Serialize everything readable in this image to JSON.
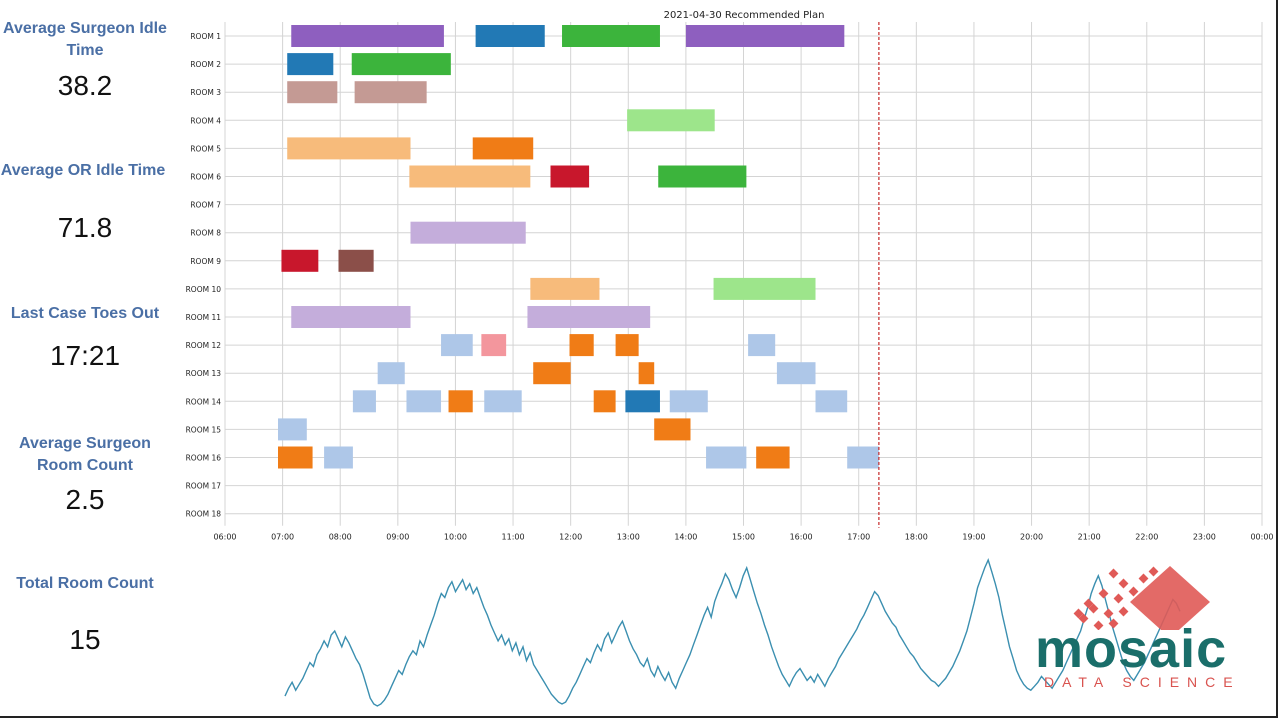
{
  "metrics": [
    {
      "label": "Average Surgeon Idle Time",
      "value": "38.2"
    },
    {
      "label": "Average OR Idle Time",
      "value": "71.8"
    },
    {
      "label": "Last Case Toes Out",
      "value": "17:21"
    },
    {
      "label": "Average Surgeon Room Count",
      "value": "2.5"
    },
    {
      "label": "Total Room Count",
      "value": "15"
    }
  ],
  "logo": {
    "word": "mosaic",
    "sub": "DATA SCIENCE"
  },
  "colors": {
    "accent": "#4a6fa5",
    "cutoff": "#c62828",
    "line": "#3b8fb0"
  },
  "chart_data": [
    {
      "type": "gantt",
      "title": "2021-04-30 Recommended Plan",
      "rooms": [
        "ROOM 1",
        "ROOM 2",
        "ROOM 3",
        "ROOM 4",
        "ROOM 5",
        "ROOM 6",
        "ROOM 7",
        "ROOM 8",
        "ROOM 9",
        "ROOM 10",
        "ROOM 11",
        "ROOM 12",
        "ROOM 13",
        "ROOM 14",
        "ROOM 15",
        "ROOM 16",
        "ROOM 17",
        "ROOM 18"
      ],
      "x_ticks": [
        "06:00",
        "07:00",
        "08:00",
        "09:00",
        "10:00",
        "11:00",
        "12:00",
        "13:00",
        "14:00",
        "15:00",
        "16:00",
        "17:00",
        "18:00",
        "19:00",
        "20:00",
        "21:00",
        "22:00",
        "23:00",
        "00:00"
      ],
      "x_range_hours": [
        6,
        24
      ],
      "cutoff_hour": 17.35,
      "grid": true,
      "cases": [
        {
          "room": 0,
          "start": 7.15,
          "end": 9.8,
          "color": "#8e5fbf"
        },
        {
          "room": 0,
          "start": 10.35,
          "end": 11.55,
          "color": "#2279b5"
        },
        {
          "room": 0,
          "start": 11.85,
          "end": 13.55,
          "color": "#3cb43c"
        },
        {
          "room": 0,
          "start": 14.0,
          "end": 16.75,
          "color": "#8e5fbf"
        },
        {
          "room": 1,
          "start": 7.08,
          "end": 7.88,
          "color": "#2279b5"
        },
        {
          "room": 1,
          "start": 8.2,
          "end": 9.92,
          "color": "#3cb43c"
        },
        {
          "room": 2,
          "start": 7.08,
          "end": 7.95,
          "color": "#c49a94"
        },
        {
          "room": 2,
          "start": 8.25,
          "end": 9.5,
          "color": "#c49a94"
        },
        {
          "room": 3,
          "start": 12.98,
          "end": 14.5,
          "color": "#9de58b"
        },
        {
          "room": 4,
          "start": 7.08,
          "end": 9.22,
          "color": "#f7bb7b"
        },
        {
          "room": 4,
          "start": 10.3,
          "end": 11.35,
          "color": "#f07c16"
        },
        {
          "room": 5,
          "start": 9.2,
          "end": 11.3,
          "color": "#f7bb7b"
        },
        {
          "room": 5,
          "start": 11.65,
          "end": 12.32,
          "color": "#c8172c"
        },
        {
          "room": 5,
          "start": 13.52,
          "end": 15.05,
          "color": "#3cb43c"
        },
        {
          "room": 7,
          "start": 9.22,
          "end": 11.22,
          "color": "#c4addb"
        },
        {
          "room": 8,
          "start": 6.98,
          "end": 7.62,
          "color": "#c8172c"
        },
        {
          "room": 8,
          "start": 7.97,
          "end": 8.58,
          "color": "#8b4f49"
        },
        {
          "room": 9,
          "start": 11.3,
          "end": 12.5,
          "color": "#f7bb7b"
        },
        {
          "room": 9,
          "start": 14.48,
          "end": 16.25,
          "color": "#9de58b"
        },
        {
          "room": 10,
          "start": 7.15,
          "end": 9.22,
          "color": "#c4addb"
        },
        {
          "room": 10,
          "start": 11.25,
          "end": 13.38,
          "color": "#c4addb"
        },
        {
          "room": 11,
          "start": 9.75,
          "end": 10.3,
          "color": "#aec7e8"
        },
        {
          "room": 11,
          "start": 10.45,
          "end": 10.88,
          "color": "#f3969d"
        },
        {
          "room": 11,
          "start": 11.98,
          "end": 12.4,
          "color": "#f07c16"
        },
        {
          "room": 11,
          "start": 12.78,
          "end": 13.18,
          "color": "#f07c16"
        },
        {
          "room": 11,
          "start": 15.08,
          "end": 15.55,
          "color": "#aec7e8"
        },
        {
          "room": 12,
          "start": 8.65,
          "end": 9.12,
          "color": "#aec7e8"
        },
        {
          "room": 12,
          "start": 11.35,
          "end": 12.0,
          "color": "#f07c16"
        },
        {
          "room": 12,
          "start": 13.18,
          "end": 13.45,
          "color": "#f07c16"
        },
        {
          "room": 12,
          "start": 15.58,
          "end": 16.25,
          "color": "#aec7e8"
        },
        {
          "room": 13,
          "start": 8.22,
          "end": 8.62,
          "color": "#aec7e8"
        },
        {
          "room": 13,
          "start": 9.15,
          "end": 9.75,
          "color": "#aec7e8"
        },
        {
          "room": 13,
          "start": 9.88,
          "end": 10.3,
          "color": "#f07c16"
        },
        {
          "room": 13,
          "start": 10.5,
          "end": 11.15,
          "color": "#aec7e8"
        },
        {
          "room": 13,
          "start": 12.4,
          "end": 12.78,
          "color": "#f07c16"
        },
        {
          "room": 13,
          "start": 12.95,
          "end": 13.55,
          "color": "#2279b5"
        },
        {
          "room": 13,
          "start": 13.72,
          "end": 14.38,
          "color": "#aec7e8"
        },
        {
          "room": 13,
          "start": 16.25,
          "end": 16.8,
          "color": "#aec7e8"
        },
        {
          "room": 14,
          "start": 6.92,
          "end": 7.42,
          "color": "#aec7e8"
        },
        {
          "room": 14,
          "start": 13.45,
          "end": 14.08,
          "color": "#f07c16"
        },
        {
          "room": 15,
          "start": 6.92,
          "end": 7.52,
          "color": "#f07c16"
        },
        {
          "room": 15,
          "start": 7.72,
          "end": 8.22,
          "color": "#aec7e8"
        },
        {
          "room": 15,
          "start": 14.35,
          "end": 15.05,
          "color": "#aec7e8"
        },
        {
          "room": 15,
          "start": 15.22,
          "end": 15.8,
          "color": "#f07c16"
        },
        {
          "room": 15,
          "start": 16.8,
          "end": 17.35,
          "color": "#aec7e8"
        }
      ]
    },
    {
      "type": "line",
      "series": [
        {
          "values": [
            5,
            9,
            12,
            8,
            11,
            14,
            18,
            22,
            20,
            26,
            29,
            33,
            30,
            36,
            38,
            34,
            30,
            35,
            32,
            28,
            24,
            21,
            16,
            10,
            4,
            1,
            0,
            1,
            3,
            6,
            10,
            14,
            18,
            16,
            21,
            25,
            28,
            26,
            33,
            30,
            36,
            41,
            46,
            52,
            57,
            55,
            60,
            63,
            58,
            61,
            64,
            59,
            62,
            57,
            60,
            55,
            50,
            46,
            41,
            37,
            33,
            36,
            31,
            34,
            28,
            32,
            26,
            30,
            23,
            27,
            21,
            18,
            15,
            12,
            9,
            6,
            4,
            2,
            1,
            2,
            5,
            9,
            12,
            16,
            20,
            24,
            22,
            27,
            31,
            28,
            34,
            37,
            32,
            36,
            40,
            43,
            38,
            33,
            29,
            26,
            22,
            20,
            24,
            18,
            15,
            20,
            16,
            13,
            17,
            12,
            9,
            14,
            18,
            22,
            26,
            31,
            36,
            41,
            46,
            50,
            45,
            53,
            58,
            62,
            67,
            64,
            59,
            55,
            60,
            66,
            70,
            64,
            58,
            52,
            47,
            41,
            36,
            30,
            25,
            20,
            16,
            13,
            10,
            14,
            17,
            19,
            16,
            13,
            15,
            12,
            16,
            13,
            10,
            14,
            17,
            20,
            24,
            27,
            30,
            33,
            36,
            39,
            43,
            46,
            50,
            54,
            58,
            56,
            52,
            48,
            45,
            42,
            40,
            36,
            33,
            30,
            27,
            25,
            22,
            19,
            17,
            15,
            13,
            12,
            10,
            12,
            14,
            17,
            20,
            24,
            28,
            33,
            38,
            45,
            52,
            60,
            65,
            70,
            74,
            68,
            62,
            55,
            46,
            38,
            30,
            24,
            18,
            14,
            11,
            9,
            8,
            10,
            12,
            15,
            13,
            11,
            9,
            12,
            15,
            18,
            22,
            26,
            30,
            34,
            38,
            44,
            50,
            57,
            62,
            66,
            61,
            54,
            47,
            40,
            34,
            28,
            22,
            18,
            15,
            13,
            16,
            19,
            22,
            26,
            30,
            34,
            38,
            42,
            46,
            50,
            54,
            52,
            48
          ]
        }
      ],
      "grid": false
    }
  ]
}
